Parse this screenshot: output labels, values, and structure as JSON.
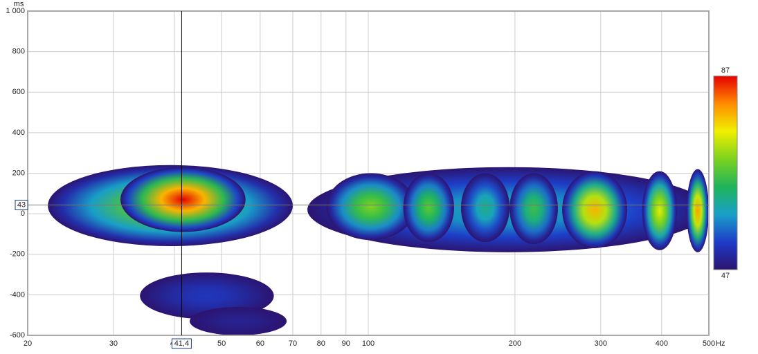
{
  "chart_data": {
    "type": "spectrogram",
    "x_unit": "Hz",
    "y_unit": "ms",
    "xscale": "log",
    "xlim": [
      20,
      500
    ],
    "xticks": [
      20,
      30,
      40,
      50,
      60,
      70,
      80,
      90,
      100,
      200,
      300,
      400,
      500
    ],
    "ylim": [
      -600,
      1000
    ],
    "yticks": [
      -600,
      -400,
      -200,
      0,
      200,
      400,
      600,
      800,
      {
        "value": 1000,
        "label": "1 000"
      }
    ],
    "grid": true,
    "zlim": [
      47,
      87
    ],
    "zticks": [
      47,
      87
    ],
    "colormap": [
      "#2c1470",
      "#1e3cc8",
      "#19a0c8",
      "#1eb45a",
      "#7cd21e",
      "#f0f000",
      "#ff8c00",
      "#e60000"
    ],
    "regions": [
      {
        "x0": 22,
        "x1": 70,
        "y0": -160,
        "y1": 240,
        "z": 72
      },
      {
        "x0": 31,
        "x1": 56,
        "y0": -90,
        "y1": 230,
        "z": 87
      },
      {
        "x0": 34,
        "x1": 64,
        "y0": -520,
        "y1": -290,
        "z": 52
      },
      {
        "x0": 43,
        "x1": 68,
        "y0": -600,
        "y1": -460,
        "z": 49
      },
      {
        "x0": 75,
        "x1": 500,
        "y0": -190,
        "y1": 230,
        "z": 60
      },
      {
        "x0": 82,
        "x1": 125,
        "y0": -130,
        "y1": 200,
        "z": 70
      },
      {
        "x0": 118,
        "x1": 150,
        "y0": -140,
        "y1": 200,
        "z": 68
      },
      {
        "x0": 155,
        "x1": 195,
        "y0": -140,
        "y1": 200,
        "z": 62
      },
      {
        "x0": 195,
        "x1": 245,
        "y0": -150,
        "y1": 200,
        "z": 66
      },
      {
        "x0": 250,
        "x1": 340,
        "y0": -170,
        "y1": 210,
        "z": 79
      },
      {
        "x0": 365,
        "x1": 430,
        "y0": -180,
        "y1": 210,
        "z": 75
      },
      {
        "x0": 450,
        "x1": 500,
        "y0": -190,
        "y1": 220,
        "z": 80
      }
    ],
    "cursor": {
      "x": {
        "value": 41.4,
        "label": "41,4"
      },
      "y": 43
    }
  }
}
